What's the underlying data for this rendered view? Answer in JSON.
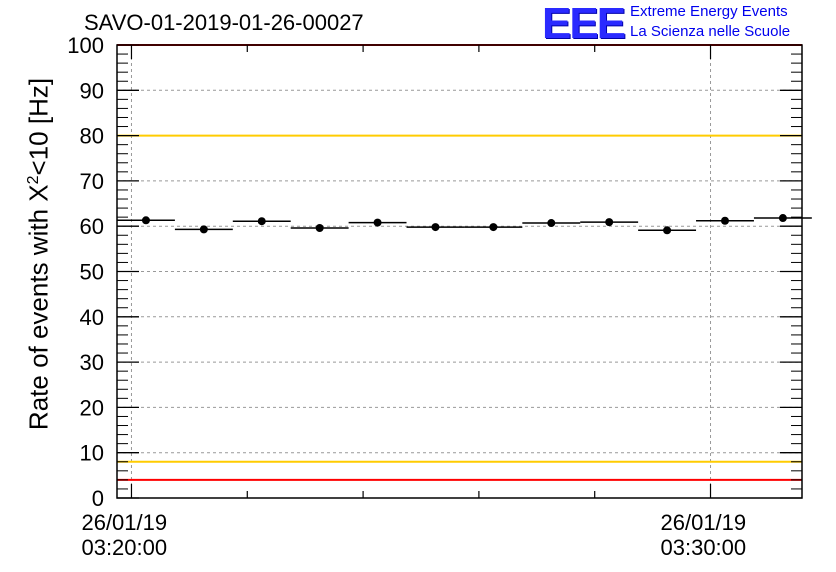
{
  "chart_data": {
    "type": "scatter",
    "title": "SAVO-01-2019-01-26-00027",
    "ylabel_prefix": "Rate of events with X",
    "ylabel_sup": "2",
    "ylabel_suffix": "<10 [Hz]",
    "xlabel": "",
    "ylim": [
      0,
      100
    ],
    "yticks": [
      0,
      10,
      20,
      30,
      40,
      50,
      60,
      70,
      80,
      90,
      100
    ],
    "xlim_min": [
      19.75,
      31.58
    ],
    "xticks": [
      {
        "min": 20.0,
        "date": "26/01/19",
        "time": "03:20:00"
      },
      {
        "min": 30.0,
        "date": "26/01/19",
        "time": "03:30:00"
      }
    ],
    "bin_width_min": 1.0,
    "x_centers_min": [
      20.25,
      21.25,
      22.25,
      23.25,
      24.25,
      25.25,
      26.25,
      27.25,
      28.25,
      29.25,
      30.25,
      31.25
    ],
    "values": [
      61.3,
      59.3,
      61.1,
      59.6,
      60.8,
      59.8,
      59.8,
      60.7,
      60.9,
      59.1,
      61.2,
      61.8
    ],
    "reference_lines": [
      {
        "y": 80,
        "color": "#ffcc00"
      },
      {
        "y": 8,
        "color": "#ffcc00"
      },
      {
        "y": 100,
        "color": "#ff0000"
      },
      {
        "y": 4,
        "color": "#ff0000"
      }
    ]
  },
  "logo": {
    "mark": "EEE",
    "line1": "Extreme Energy Events",
    "line2": "La Scienza nelle Scuole"
  }
}
